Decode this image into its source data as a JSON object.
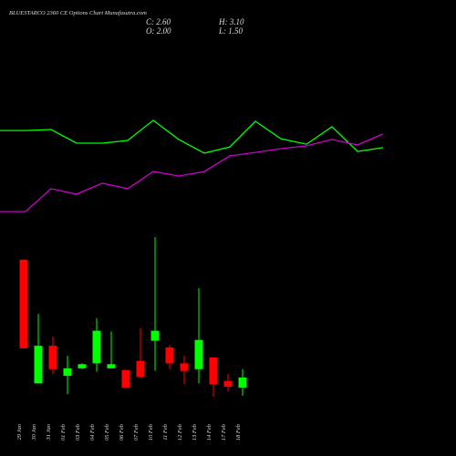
{
  "chart_data": {
    "type": "candlestick",
    "title": "BLUESTARCO 2360 CE Options Chart Munafasutra.com",
    "ohlc_labels": [
      "C: 2.60",
      "O: 2.00",
      "H: 3.10",
      "L: 1.50"
    ],
    "categories": [
      "29 Jan",
      "30 Jan",
      "31 Jan",
      "01 Feb",
      "03 Feb",
      "04 Feb",
      "05 Feb",
      "06 Feb",
      "07 Feb",
      "10 Feb",
      "11 Feb",
      "12 Feb",
      "13 Feb",
      "14 Feb",
      "17 Feb",
      "18 Feb"
    ],
    "open": [
      9.65,
      2.25,
      4.5,
      2.7,
      3.15,
      3.45,
      3.15,
      3.05,
      3.6,
      4.8,
      4.4,
      3.45,
      3.1,
      3.8,
      2.4,
      2.0
    ],
    "high": [
      9.65,
      6.4,
      5.05,
      3.9,
      3.45,
      6.15,
      5.35,
      3.05,
      5.55,
      11.0,
      4.55,
      3.9,
      7.95,
      3.8,
      2.8,
      3.1
    ],
    "low": [
      4.35,
      2.25,
      2.8,
      1.6,
      3.1,
      2.95,
      3.15,
      2.0,
      2.55,
      3.0,
      3.1,
      2.2,
      2.25,
      1.45,
      1.75,
      1.5
    ],
    "close": [
      4.35,
      4.5,
      3.1,
      3.15,
      3.4,
      5.4,
      3.4,
      2.0,
      2.65,
      5.4,
      3.45,
      3.0,
      4.85,
      2.2,
      2.05,
      2.6
    ],
    "up_color": "#00ff00",
    "down_color": "#ff0000",
    "ylim": [
      1.18,
      11.27
    ],
    "lines": [
      {
        "color": "#00ff00",
        "values": [
          71.3,
          71.3,
          72,
          62,
          62,
          64,
          78.7,
          64.7,
          54.7,
          59.3,
          78,
          65.3,
          61.3,
          74,
          56,
          58.7
        ]
      },
      {
        "color": "#cc00cc",
        "values": [
          12,
          12,
          28.7,
          24.7,
          32.7,
          28.7,
          41.3,
          38,
          41.3,
          52.7,
          55.3,
          58,
          60,
          64.7,
          60.7,
          68.7
        ]
      }
    ],
    "lines_ylim": [
      0,
      100
    ]
  }
}
